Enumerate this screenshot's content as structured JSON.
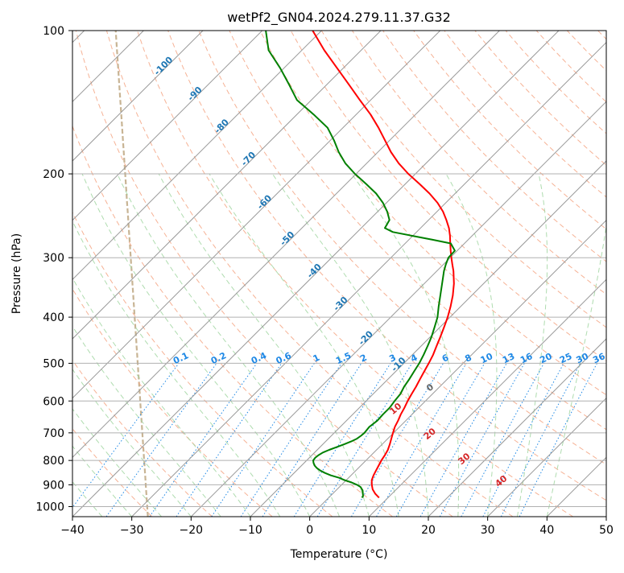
{
  "chart_data": {
    "type": "line",
    "subtype": "skew-T log-P diagram",
    "title": "wetPf2_GN04.2024.279.11.37.G32",
    "xlabel": "Temperature (°C)",
    "ylabel": "Pressure (hPa)",
    "xlim": [
      -40,
      50
    ],
    "ylim": [
      1050,
      100
    ],
    "y_scale": "log",
    "x_ticks": [
      "−40",
      "−30",
      "−20",
      "−10",
      "0",
      "10",
      "20",
      "30",
      "40",
      "50"
    ],
    "y_ticks": [
      "100",
      "200",
      "300",
      "400",
      "500",
      "600",
      "700",
      "800",
      "900",
      "1000"
    ],
    "grid": true,
    "series": [
      {
        "name": "temperature",
        "color": "#ff0000",
        "points": [
          [
            958,
            8.5
          ],
          [
            940,
            7.2
          ],
          [
            920,
            6.0
          ],
          [
            900,
            5.1
          ],
          [
            880,
            4.3
          ],
          [
            860,
            3.8
          ],
          [
            840,
            3.4
          ],
          [
            820,
            3.0
          ],
          [
            800,
            2.6
          ],
          [
            780,
            2.3
          ],
          [
            760,
            1.9
          ],
          [
            740,
            1.3
          ],
          [
            720,
            0.6
          ],
          [
            700,
            -0.1
          ],
          [
            680,
            -0.8
          ],
          [
            660,
            -1.3
          ],
          [
            640,
            -1.9
          ],
          [
            620,
            -2.4
          ],
          [
            600,
            -3.0
          ],
          [
            580,
            -3.5
          ],
          [
            560,
            -4.0
          ],
          [
            540,
            -4.6
          ],
          [
            520,
            -5.2
          ],
          [
            500,
            -5.8
          ],
          [
            480,
            -6.5
          ],
          [
            460,
            -7.4
          ],
          [
            440,
            -8.3
          ],
          [
            420,
            -9.3
          ],
          [
            400,
            -10.4
          ],
          [
            380,
            -11.7
          ],
          [
            360,
            -13.2
          ],
          [
            340,
            -15.0
          ],
          [
            320,
            -17.2
          ],
          [
            310,
            -18.5
          ],
          [
            300,
            -19.8
          ],
          [
            290,
            -21.1
          ],
          [
            280,
            -22.4
          ],
          [
            270,
            -23.7
          ],
          [
            260,
            -25.2
          ],
          [
            250,
            -27.0
          ],
          [
            240,
            -29.0
          ],
          [
            230,
            -31.4
          ],
          [
            220,
            -34.3
          ],
          [
            210,
            -37.6
          ],
          [
            200,
            -41.2
          ],
          [
            190,
            -44.6
          ],
          [
            180,
            -47.8
          ],
          [
            170,
            -50.8
          ],
          [
            160,
            -54.0
          ],
          [
            150,
            -57.6
          ],
          [
            140,
            -61.8
          ],
          [
            130,
            -66.2
          ],
          [
            120,
            -71.0
          ],
          [
            110,
            -76.2
          ],
          [
            100,
            -81.5
          ]
        ]
      },
      {
        "name": "dewpoint",
        "color": "#008000",
        "points": [
          [
            958,
            5.6
          ],
          [
            950,
            5.5
          ],
          [
            940,
            5.1
          ],
          [
            925,
            4.5
          ],
          [
            910,
            3.6
          ],
          [
            900,
            2.6
          ],
          [
            890,
            1.3
          ],
          [
            880,
            -0.3
          ],
          [
            870,
            -1.6
          ],
          [
            860,
            -3.4
          ],
          [
            850,
            -4.8
          ],
          [
            840,
            -6.0
          ],
          [
            830,
            -7.0
          ],
          [
            820,
            -7.8
          ],
          [
            810,
            -8.4
          ],
          [
            800,
            -8.9
          ],
          [
            790,
            -9.0
          ],
          [
            780,
            -8.9
          ],
          [
            770,
            -8.6
          ],
          [
            760,
            -8.0
          ],
          [
            750,
            -7.2
          ],
          [
            740,
            -6.4
          ],
          [
            730,
            -5.7
          ],
          [
            720,
            -5.2
          ],
          [
            710,
            -5.0
          ],
          [
            700,
            -4.9
          ],
          [
            680,
            -5.1
          ],
          [
            660,
            -4.8
          ],
          [
            640,
            -4.9
          ],
          [
            620,
            -4.9
          ],
          [
            600,
            -5.2
          ],
          [
            580,
            -5.4
          ],
          [
            560,
            -6.0
          ],
          [
            540,
            -6.4
          ],
          [
            520,
            -6.9
          ],
          [
            500,
            -7.4
          ],
          [
            480,
            -8.1
          ],
          [
            460,
            -8.9
          ],
          [
            440,
            -9.8
          ],
          [
            420,
            -10.9
          ],
          [
            400,
            -12.1
          ],
          [
            380,
            -13.7
          ],
          [
            360,
            -15.3
          ],
          [
            340,
            -17.0
          ],
          [
            320,
            -18.8
          ],
          [
            310,
            -19.6
          ],
          [
            300,
            -20.3
          ],
          [
            290,
            -20.4
          ],
          [
            280,
            -22.3
          ],
          [
            275,
            -26.0
          ],
          [
            270,
            -30.0
          ],
          [
            265,
            -34.0
          ],
          [
            260,
            -36.0
          ],
          [
            250,
            -36.6
          ],
          [
            240,
            -38.4
          ],
          [
            230,
            -40.6
          ],
          [
            220,
            -43.3
          ],
          [
            210,
            -46.6
          ],
          [
            200,
            -50.2
          ],
          [
            190,
            -53.6
          ],
          [
            180,
            -56.6
          ],
          [
            170,
            -59.4
          ],
          [
            160,
            -62.6
          ],
          [
            150,
            -67.2
          ],
          [
            140,
            -72.4
          ],
          [
            130,
            -76.3
          ],
          [
            120,
            -80.6
          ],
          [
            110,
            -85.6
          ],
          [
            100,
            -89.4
          ]
        ]
      }
    ],
    "isotherm_labels": [
      "-100",
      "-90",
      "-80",
      "-70",
      "-60",
      "-50",
      "-40",
      "-30",
      "-20",
      "-10"
    ],
    "isotherm_label_color": "#1f77b4",
    "mixing_ratio_labels": [
      "0.1",
      "0.2",
      "0.4",
      "0.6",
      "1",
      "1.5",
      "2",
      "3",
      "4",
      "6",
      "8",
      "10",
      "13",
      "16",
      "20",
      "25",
      "30",
      "36"
    ],
    "mixing_ratio_color": "#1e88e5",
    "freezing_level_label": "0",
    "warm_isotherm_labels": [
      "10",
      "20",
      "30",
      "40"
    ],
    "warm_isotherm_label_color": "#d62728",
    "background_line_colors": {
      "dry_adiabat": "#f4a582",
      "moist_adiabat": "#a6d8a6",
      "isotherm": "#999999",
      "hodograph_arc": "#c8b494"
    }
  }
}
